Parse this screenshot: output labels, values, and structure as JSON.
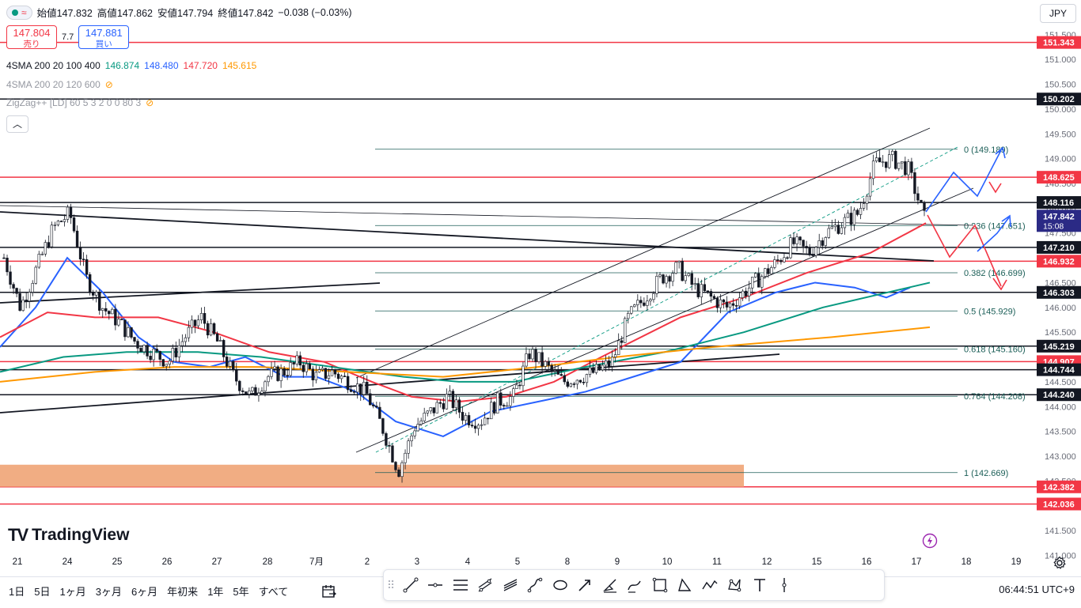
{
  "header": {
    "open_label": "始値",
    "open_value": "147.832",
    "high_label": "高値",
    "high_value": "147.862",
    "low_label": "安値",
    "low_value": "147.794",
    "close_label": "終値",
    "close_value": "147.842",
    "change": "−0.038 (−0.03%)",
    "status_icon": "green-dot",
    "wave_icon": "≈"
  },
  "trade": {
    "sell_price": "147.804",
    "sell_label": "売り",
    "spread": "7.7",
    "buy_price": "147.881",
    "buy_label": "買い"
  },
  "indicators": [
    {
      "name": "4SMA 200 20 100 400",
      "values": [
        "146.874",
        "148.480",
        "147.720",
        "145.615"
      ],
      "colors": [
        "#089981",
        "#2962ff",
        "#f23645",
        "#ff9800"
      ],
      "hidden": false
    },
    {
      "name": "4SMA 200 20 120 600",
      "values": [],
      "hidden": true
    },
    {
      "name": "ZigZag++ [LD] 60 5 3 2 0 0 80 3",
      "values": [],
      "hidden": true
    }
  ],
  "collapse_icon": "chevron-up-icon",
  "currency": "JPY",
  "price_axis": {
    "ticks": [
      "151.500",
      "151.000",
      "150.500",
      "150.000",
      "149.500",
      "149.000",
      "148.500",
      "148.000",
      "147.500",
      "146.500",
      "146.000",
      "145.500",
      "144.500",
      "144.000",
      "143.500",
      "143.000",
      "142.500",
      "142.000",
      "141.500",
      "141.000"
    ],
    "labels": [
      {
        "value": "151.343",
        "kind": "red"
      },
      {
        "value": "150.202",
        "kind": "black"
      },
      {
        "value": "148.625",
        "kind": "red"
      },
      {
        "value": "148.116",
        "kind": "black"
      },
      {
        "value": "147.842",
        "kind": "current",
        "countdown": "15:08"
      },
      {
        "value": "147.210",
        "kind": "black"
      },
      {
        "value": "146.932",
        "kind": "red"
      },
      {
        "value": "146.303",
        "kind": "black"
      },
      {
        "value": "145.219",
        "kind": "black"
      },
      {
        "value": "144.907",
        "kind": "red"
      },
      {
        "value": "144.744",
        "kind": "black"
      },
      {
        "value": "144.240",
        "kind": "black"
      },
      {
        "value": "142.382",
        "kind": "red"
      },
      {
        "value": "142.036",
        "kind": "red"
      }
    ]
  },
  "fib_levels": [
    {
      "label": "0 (149.189)",
      "price": 149.189
    },
    {
      "label": "0.236 (147.651)",
      "price": 147.651
    },
    {
      "label": "0.382 (146.699)",
      "price": 146.699
    },
    {
      "label": "0.5 (145.929)",
      "price": 145.929
    },
    {
      "label": "0.618 (145.160)",
      "price": 145.16
    },
    {
      "label": "0.764 (144.208)",
      "price": 144.208
    },
    {
      "label": "1 (142.669)",
      "price": 142.669
    }
  ],
  "time_axis": [
    "21",
    "24",
    "25",
    "26",
    "27",
    "28",
    "7月",
    "2",
    "3",
    "4",
    "5",
    "8",
    "9",
    "10",
    "11",
    "12",
    "15",
    "16",
    "17",
    "18",
    "19"
  ],
  "logo_text": "TradingView",
  "ranges": [
    "1日",
    "5日",
    "1ヶ月",
    "3ヶ月",
    "6ヶ月",
    "年初来",
    "1年",
    "5年",
    "すべて"
  ],
  "clock": "06:44:51 UTC+9",
  "drawing_tools": [
    "trend-line-icon",
    "horizontal-ray-icon",
    "parallel-channel-icon",
    "pitchfork-icon",
    "fib-retracement-icon",
    "path-icon",
    "ellipse-icon",
    "arrow-icon",
    "brush-icon",
    "curve-icon",
    "rectangle-icon",
    "triangle-icon",
    "zigzag-icon",
    "pattern-icon",
    "text-icon",
    "vertical-line-icon"
  ],
  "chart_data": {
    "type": "candlestick",
    "symbol_currency": "JPY",
    "y_range": [
      140.8,
      151.8
    ],
    "x_ticks": [
      "21",
      "24",
      "25",
      "26",
      "27",
      "28",
      "7月",
      "2",
      "3",
      "4",
      "5",
      "8",
      "9",
      "10",
      "11",
      "12",
      "15",
      "16",
      "17",
      "18",
      "19"
    ],
    "close_path": [
      147.0,
      146.0,
      146.8,
      147.6,
      147.9,
      146.6,
      146.0,
      145.7,
      145.3,
      145.1,
      144.9,
      145.4,
      145.8,
      145.3,
      144.6,
      144.2,
      144.6,
      144.7,
      144.9,
      144.6,
      144.7,
      144.5,
      144.3,
      143.6,
      142.7,
      143.6,
      143.9,
      144.2,
      143.8,
      143.7,
      144.1,
      144.2,
      145.1,
      144.8,
      144.5,
      144.6,
      144.7,
      144.9,
      145.8,
      146.2,
      146.6,
      146.8,
      146.4,
      146.2,
      146.0,
      146.3,
      146.6,
      146.9,
      147.3,
      147.1,
      147.5,
      147.7,
      147.9,
      148.9,
      149.0,
      148.8,
      147.8
    ],
    "sma": [
      {
        "name": "SMA 20",
        "color": "#2962ff",
        "points": [
          145.2,
          146.0,
          147.0,
          146.3,
          145.4,
          144.9,
          144.8,
          145.0,
          144.6,
          144.6,
          144.3,
          143.7,
          143.4,
          143.9,
          144.1,
          144.3,
          144.6,
          144.9,
          145.9,
          146.3,
          146.5,
          146.4,
          146.2,
          146.4,
          147.0,
          147.5,
          148.9,
          148.5
        ]
      },
      {
        "name": "SMA 100",
        "color": "#f23645",
        "points": [
          145.4,
          145.9,
          145.8,
          145.8,
          145.5,
          145.1,
          144.9,
          144.5,
          144.2,
          144.1,
          144.2,
          144.5,
          145.0,
          145.8,
          146.2,
          146.7,
          147.1,
          147.7
        ]
      },
      {
        "name": "SMA 200",
        "color": "#089981",
        "points": [
          144.7,
          145.0,
          145.1,
          145.1,
          145.0,
          144.8,
          144.6,
          144.5,
          144.5,
          144.8,
          145.1,
          145.5,
          146.0,
          146.5,
          146.9
        ]
      },
      {
        "name": "SMA 400",
        "color": "#ff9800",
        "points": [
          144.5,
          144.7,
          144.8,
          144.8,
          144.7,
          144.6,
          144.8,
          145.0,
          145.2,
          145.4,
          145.6
        ]
      }
    ],
    "horizontal_levels": [
      151.343,
      150.202,
      148.625,
      148.116,
      147.21,
      146.932,
      146.303,
      145.219,
      144.907,
      144.744,
      144.24,
      142.382,
      142.036
    ],
    "support_zone": [
      142.382,
      142.669
    ],
    "scenario_arrows": [
      "up",
      "down",
      "up",
      "down"
    ]
  }
}
